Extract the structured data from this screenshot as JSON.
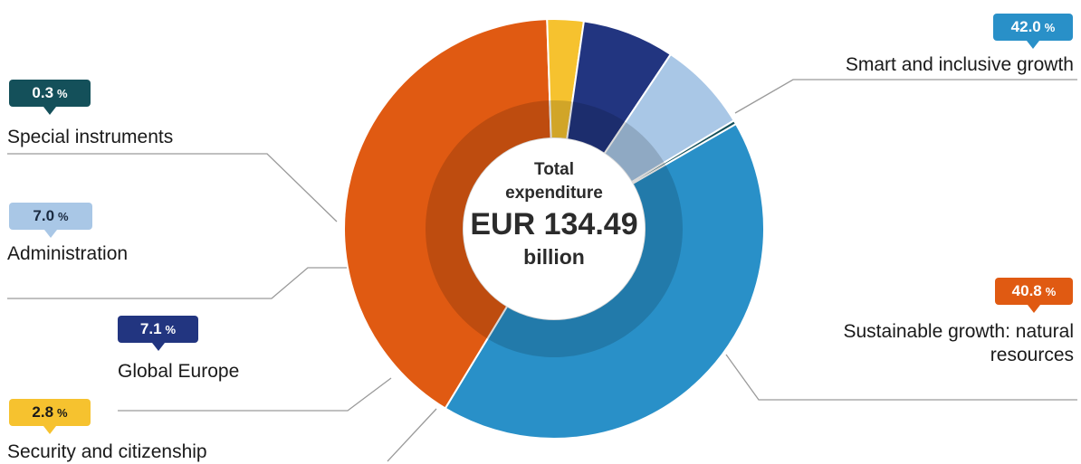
{
  "chart_data": {
    "type": "pie",
    "center_text": {
      "line1": "Total",
      "line2": "expenditure",
      "line3": "EUR 134.49",
      "line4": "billion"
    },
    "slices": [
      {
        "label": "Smart and inclusive growth",
        "value_text": "42.0",
        "value": 42.0,
        "color": "#2990c8"
      },
      {
        "label": "Sustainable growth: natural resources",
        "value_text": "40.8",
        "value": 40.8,
        "color": "#e05a12"
      },
      {
        "label": "Security and citizenship",
        "value_text": "2.8",
        "value": 2.8,
        "color": "#f6c22f"
      },
      {
        "label": "Global Europe",
        "value_text": "7.1",
        "value": 7.1,
        "color": "#223580"
      },
      {
        "label": "Administration",
        "value_text": "7.0",
        "value": 7.0,
        "color": "#a9c7e6"
      },
      {
        "label": "Special instruments",
        "value_text": "0.3",
        "value": 0.3,
        "color": "#14505a"
      }
    ],
    "unit_symbol": "%"
  }
}
